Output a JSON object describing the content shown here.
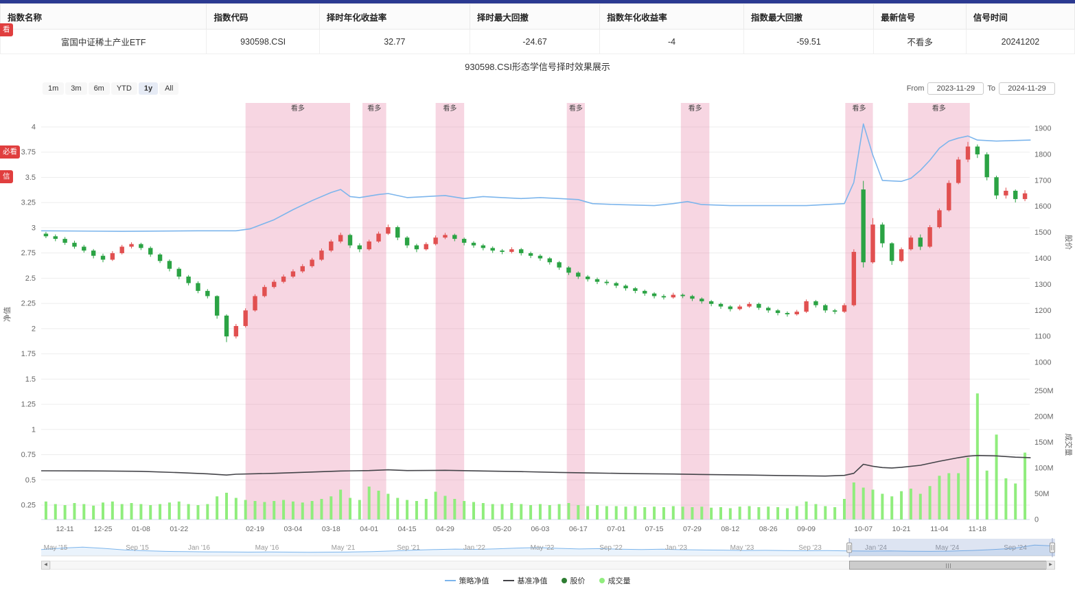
{
  "accent": {
    "top_bar_color": "#2b3a91"
  },
  "badges": [
    {
      "text": "看"
    },
    {
      "text": "必看"
    },
    {
      "text": "信"
    }
  ],
  "table": {
    "headers": [
      "指数名称",
      "指数代码",
      "择时年化收益率",
      "择时最大回撤",
      "指数年化收益率",
      "指数最大回撤",
      "最新信号",
      "信号时间"
    ],
    "row": [
      "富国中证稀土产业ETF",
      "930598.CSI",
      "32.77",
      "-24.67",
      "-4",
      "-59.51",
      "不看多",
      "20241202"
    ]
  },
  "chart": {
    "title": "930598.CSI形态学信号择时效果展示",
    "range_buttons": [
      "1m",
      "3m",
      "6m",
      "YTD",
      "1y",
      "All"
    ],
    "active_range": "1y",
    "from_label": "From",
    "to_label": "To",
    "from_value": "2023-11-29",
    "to_value": "2024-11-29"
  },
  "chart_data": {
    "type": "candlestick",
    "title": "930598.CSI形态学信号择时效果展示",
    "axes": {
      "left": {
        "title": "净值",
        "min": 0.25,
        "max": 4,
        "tick_step": 0.25
      },
      "price": {
        "title": "股价",
        "min": 1000,
        "max": 1900,
        "tick_step": 100
      },
      "volume": {
        "title": "成交量",
        "ticks": [
          "0",
          "50M",
          "100M",
          "150M",
          "200M",
          "250M"
        ]
      }
    },
    "x_ticks": [
      [
        "12-11",
        2
      ],
      [
        "12-25",
        6
      ],
      [
        "01-08",
        10
      ],
      [
        "01-22",
        14
      ],
      [
        "02-19",
        22
      ],
      [
        "03-04",
        26
      ],
      [
        "03-18",
        30
      ],
      [
        "04-01",
        34
      ],
      [
        "04-15",
        38
      ],
      [
        "04-29",
        42
      ],
      [
        "05-20",
        48
      ],
      [
        "06-03",
        52
      ],
      [
        "06-17",
        56
      ],
      [
        "07-01",
        60
      ],
      [
        "07-15",
        64
      ],
      [
        "07-29",
        68
      ],
      [
        "08-12",
        72
      ],
      [
        "08-26",
        76
      ],
      [
        "09-09",
        80
      ],
      [
        "10-07",
        86
      ],
      [
        "10-21",
        90
      ],
      [
        "11-04",
        94
      ],
      [
        "11-18",
        98
      ]
    ],
    "signal_bands": [
      {
        "label": "看多",
        "from": 21.5,
        "to": 32.5,
        "from_date": "2024-02-19",
        "to_date": "2024-03-22"
      },
      {
        "label": "看多",
        "from": 33.8,
        "to": 36.3,
        "from_date": "2024-04-01",
        "to_date": "2024-04-08"
      },
      {
        "label": "看多",
        "from": 41.5,
        "to": 44.5,
        "from_date": "2024-04-26",
        "to_date": "2024-05-06"
      },
      {
        "label": "看多",
        "from": 55.3,
        "to": 57.2,
        "from_date": "2024-06-14",
        "to_date": "2024-06-19"
      },
      {
        "label": "看多",
        "from": 67.3,
        "to": 70.3,
        "from_date": "2024-07-26",
        "to_date": "2024-08-06"
      },
      {
        "label": "看多",
        "from": 84.6,
        "to": 87.5,
        "from_date": "2024-09-30",
        "to_date": "2024-10-10"
      },
      {
        "label": "看多",
        "from": 91.2,
        "to": 97.7,
        "from_date": "2024-10-24",
        "to_date": "2024-11-13"
      }
    ],
    "candles": [
      [
        1495,
        1502,
        1478,
        1485
      ],
      [
        1485,
        1492,
        1466,
        1475
      ],
      [
        1475,
        1482,
        1452,
        1460
      ],
      [
        1460,
        1468,
        1437,
        1445
      ],
      [
        1445,
        1452,
        1422,
        1430
      ],
      [
        1430,
        1436,
        1400,
        1410
      ],
      [
        1410,
        1418,
        1385,
        1395
      ],
      [
        1395,
        1428,
        1390,
        1420
      ],
      [
        1420,
        1452,
        1415,
        1445
      ],
      [
        1445,
        1462,
        1438,
        1455
      ],
      [
        1455,
        1460,
        1432,
        1440
      ],
      [
        1440,
        1446,
        1406,
        1415
      ],
      [
        1415,
        1420,
        1382,
        1390
      ],
      [
        1390,
        1396,
        1350,
        1360
      ],
      [
        1360,
        1366,
        1320,
        1330
      ],
      [
        1330,
        1336,
        1296,
        1305
      ],
      [
        1305,
        1312,
        1266,
        1275
      ],
      [
        1275,
        1282,
        1246,
        1255
      ],
      [
        1255,
        1258,
        1168,
        1180
      ],
      [
        1180,
        1185,
        1078,
        1100
      ],
      [
        1100,
        1148,
        1092,
        1140
      ],
      [
        1140,
        1208,
        1134,
        1200
      ],
      [
        1200,
        1262,
        1195,
        1255
      ],
      [
        1255,
        1298,
        1250,
        1290
      ],
      [
        1290,
        1318,
        1284,
        1310
      ],
      [
        1310,
        1338,
        1304,
        1330
      ],
      [
        1330,
        1358,
        1324,
        1350
      ],
      [
        1350,
        1378,
        1344,
        1370
      ],
      [
        1370,
        1402,
        1364,
        1395
      ],
      [
        1395,
        1438,
        1390,
        1430
      ],
      [
        1430,
        1472,
        1424,
        1465
      ],
      [
        1465,
        1499,
        1458,
        1490
      ],
      [
        1490,
        1495,
        1440,
        1450
      ],
      [
        1450,
        1458,
        1424,
        1435
      ],
      [
        1435,
        1472,
        1430,
        1465
      ],
      [
        1465,
        1503,
        1460,
        1495
      ],
      [
        1495,
        1530,
        1490,
        1520
      ],
      [
        1520,
        1526,
        1470,
        1480
      ],
      [
        1480,
        1486,
        1440,
        1450
      ],
      [
        1450,
        1456,
        1424,
        1435
      ],
      [
        1435,
        1462,
        1430,
        1455
      ],
      [
        1455,
        1488,
        1450,
        1480
      ],
      [
        1480,
        1498,
        1474,
        1490
      ],
      [
        1490,
        1495,
        1466,
        1475
      ],
      [
        1475,
        1480,
        1450,
        1460
      ],
      [
        1460,
        1466,
        1441,
        1450
      ],
      [
        1450,
        1456,
        1431,
        1440
      ],
      [
        1440,
        1446,
        1421,
        1430
      ],
      [
        1430,
        1436,
        1416,
        1425
      ],
      [
        1425,
        1443,
        1419,
        1435
      ],
      [
        1435,
        1440,
        1411,
        1420
      ],
      [
        1420,
        1426,
        1401,
        1410
      ],
      [
        1410,
        1416,
        1391,
        1400
      ],
      [
        1400,
        1405,
        1376,
        1385
      ],
      [
        1385,
        1390,
        1356,
        1365
      ],
      [
        1365,
        1370,
        1336,
        1345
      ],
      [
        1345,
        1350,
        1321,
        1330
      ],
      [
        1330,
        1336,
        1311,
        1320
      ],
      [
        1320,
        1326,
        1301,
        1310
      ],
      [
        1310,
        1318,
        1297,
        1305
      ],
      [
        1305,
        1310,
        1286,
        1295
      ],
      [
        1295,
        1300,
        1276,
        1285
      ],
      [
        1285,
        1290,
        1266,
        1275
      ],
      [
        1275,
        1280,
        1256,
        1265
      ],
      [
        1265,
        1270,
        1246,
        1255
      ],
      [
        1255,
        1262,
        1242,
        1250
      ],
      [
        1250,
        1268,
        1245,
        1260
      ],
      [
        1260,
        1265,
        1247,
        1255
      ],
      [
        1255,
        1260,
        1236,
        1245
      ],
      [
        1245,
        1250,
        1226,
        1235
      ],
      [
        1235,
        1240,
        1216,
        1225
      ],
      [
        1225,
        1230,
        1206,
        1215
      ],
      [
        1215,
        1220,
        1196,
        1205
      ],
      [
        1205,
        1222,
        1200,
        1215
      ],
      [
        1215,
        1232,
        1210,
        1225
      ],
      [
        1225,
        1230,
        1202,
        1210
      ],
      [
        1210,
        1215,
        1191,
        1200
      ],
      [
        1200,
        1205,
        1181,
        1190
      ],
      [
        1190,
        1196,
        1176,
        1185
      ],
      [
        1185,
        1202,
        1180,
        1195
      ],
      [
        1195,
        1242,
        1190,
        1235
      ],
      [
        1235,
        1240,
        1211,
        1220
      ],
      [
        1220,
        1225,
        1191,
        1200
      ],
      [
        1200,
        1206,
        1186,
        1195
      ],
      [
        1195,
        1228,
        1190,
        1220
      ],
      [
        1220,
        1435,
        1215,
        1425
      ],
      [
        1665,
        1698,
        1365,
        1385
      ],
      [
        1385,
        1555,
        1380,
        1530
      ],
      [
        1530,
        1538,
        1442,
        1458
      ],
      [
        1458,
        1462,
        1375,
        1390
      ],
      [
        1390,
        1442,
        1385,
        1435
      ],
      [
        1435,
        1488,
        1430,
        1480
      ],
      [
        1480,
        1492,
        1432,
        1445
      ],
      [
        1445,
        1528,
        1440,
        1520
      ],
      [
        1520,
        1592,
        1515,
        1585
      ],
      [
        1585,
        1700,
        1580,
        1690
      ],
      [
        1690,
        1790,
        1685,
        1780
      ],
      [
        1780,
        1848,
        1770,
        1830
      ],
      [
        1830,
        1838,
        1786,
        1800
      ],
      [
        1800,
        1808,
        1700,
        1712
      ],
      [
        1712,
        1718,
        1628,
        1642
      ],
      [
        1642,
        1672,
        1630,
        1660
      ],
      [
        1660,
        1665,
        1615,
        1628
      ],
      [
        1628,
        1662,
        1620,
        1650
      ]
    ],
    "volumes": [
      35,
      30,
      28,
      32,
      30,
      27,
      33,
      35,
      30,
      32,
      30,
      28,
      30,
      33,
      35,
      30,
      28,
      30,
      45,
      52,
      42,
      38,
      36,
      34,
      36,
      38,
      35,
      33,
      36,
      40,
      45,
      58,
      42,
      38,
      64,
      56,
      50,
      42,
      38,
      36,
      40,
      54,
      46,
      40,
      36,
      34,
      32,
      30,
      30,
      32,
      30,
      28,
      30,
      28,
      30,
      32,
      28,
      26,
      28,
      26,
      26,
      25,
      26,
      24,
      25,
      24,
      26,
      25,
      24,
      25,
      23,
      24,
      22,
      25,
      26,
      24,
      25,
      24,
      22,
      26,
      35,
      30,
      26,
      24,
      40,
      72,
      62,
      58,
      50,
      45,
      55,
      60,
      50,
      65,
      85,
      90,
      90,
      120,
      245,
      95,
      165,
      80,
      70,
      130
    ],
    "strategy_nav": {
      "name": "策略净值",
      "color": "#7cb5ec",
      "points": [
        [
          -0.5,
          2.97
        ],
        [
          8,
          2.965
        ],
        [
          16,
          2.97
        ],
        [
          20,
          2.97
        ],
        [
          21.5,
          2.99
        ],
        [
          24,
          3.08
        ],
        [
          26,
          3.18
        ],
        [
          28,
          3.27
        ],
        [
          30,
          3.35
        ],
        [
          31,
          3.38
        ],
        [
          32,
          3.31
        ],
        [
          33,
          3.3
        ],
        [
          35,
          3.33
        ],
        [
          36,
          3.34
        ],
        [
          38,
          3.3
        ],
        [
          40,
          3.31
        ],
        [
          42,
          3.32
        ],
        [
          44,
          3.29
        ],
        [
          46,
          3.31
        ],
        [
          48,
          3.3
        ],
        [
          50,
          3.29
        ],
        [
          52,
          3.3
        ],
        [
          54,
          3.29
        ],
        [
          56,
          3.28
        ],
        [
          57.5,
          3.24
        ],
        [
          60,
          3.23
        ],
        [
          64,
          3.22
        ],
        [
          66,
          3.24
        ],
        [
          67.5,
          3.26
        ],
        [
          69,
          3.23
        ],
        [
          72,
          3.22
        ],
        [
          76,
          3.22
        ],
        [
          80,
          3.22
        ],
        [
          84,
          3.24
        ],
        [
          85,
          3.45
        ],
        [
          86,
          4.03
        ],
        [
          87,
          3.72
        ],
        [
          88,
          3.47
        ],
        [
          90,
          3.46
        ],
        [
          91,
          3.49
        ],
        [
          92,
          3.57
        ],
        [
          93,
          3.67
        ],
        [
          94,
          3.79
        ],
        [
          95,
          3.86
        ],
        [
          96,
          3.89
        ],
        [
          97,
          3.91
        ],
        [
          98,
          3.87
        ],
        [
          100,
          3.86
        ],
        [
          103.6,
          3.87
        ]
      ]
    },
    "benchmark_nav": {
      "name": "基准净值",
      "color": "#434348",
      "points": [
        [
          -0.5,
          0.59
        ],
        [
          6,
          0.588
        ],
        [
          10,
          0.585
        ],
        [
          14,
          0.572
        ],
        [
          17,
          0.56
        ],
        [
          19,
          0.548
        ],
        [
          20,
          0.556
        ],
        [
          24,
          0.565
        ],
        [
          28,
          0.578
        ],
        [
          31,
          0.588
        ],
        [
          34,
          0.592
        ],
        [
          36,
          0.6
        ],
        [
          38,
          0.592
        ],
        [
          42,
          0.595
        ],
        [
          46,
          0.588
        ],
        [
          50,
          0.582
        ],
        [
          54,
          0.574
        ],
        [
          58,
          0.568
        ],
        [
          62,
          0.562
        ],
        [
          66,
          0.558
        ],
        [
          70,
          0.552
        ],
        [
          74,
          0.548
        ],
        [
          78,
          0.542
        ],
        [
          82,
          0.538
        ],
        [
          84,
          0.545
        ],
        [
          85,
          0.565
        ],
        [
          86,
          0.655
        ],
        [
          87,
          0.635
        ],
        [
          88,
          0.622
        ],
        [
          89,
          0.618
        ],
        [
          90,
          0.625
        ],
        [
          92,
          0.645
        ],
        [
          94,
          0.685
        ],
        [
          96,
          0.72
        ],
        [
          97,
          0.735
        ],
        [
          98,
          0.742
        ],
        [
          100,
          0.738
        ],
        [
          102,
          0.725
        ],
        [
          103.6,
          0.72
        ]
      ]
    },
    "colors": {
      "up": "#e15050",
      "down": "#2ba344",
      "volume": "#90ed7d",
      "band": "rgba(230,120,160,0.30)"
    }
  },
  "navigator": {
    "labels": [
      {
        "text": "May '15",
        "f": 0.014
      },
      {
        "text": "Sep '15",
        "f": 0.095
      },
      {
        "text": "Jan '16",
        "f": 0.156
      },
      {
        "text": "May '16",
        "f": 0.223
      },
      {
        "text": "May '21",
        "f": 0.298
      },
      {
        "text": "Sep '21",
        "f": 0.362
      },
      {
        "text": "Jan '22",
        "f": 0.427
      },
      {
        "text": "May '22",
        "f": 0.494
      },
      {
        "text": "Sep '22",
        "f": 0.562
      },
      {
        "text": "Jan '23",
        "f": 0.626
      },
      {
        "text": "May '23",
        "f": 0.691
      },
      {
        "text": "Sep '23",
        "f": 0.758
      },
      {
        "text": "Jan '24",
        "f": 0.823
      },
      {
        "text": "May '24",
        "f": 0.894
      },
      {
        "text": "Sep '24",
        "f": 0.961
      }
    ],
    "values": [
      0.42,
      0.52,
      0.58,
      0.5,
      0.4,
      0.34,
      0.3,
      0.28,
      0.27,
      0.26,
      0.25,
      0.26,
      0.25,
      0.24,
      0.25,
      0.26,
      0.28,
      0.33,
      0.38,
      0.42,
      0.45,
      0.43,
      0.47,
      0.52,
      0.55,
      0.5,
      0.46,
      0.48,
      0.44,
      0.42,
      0.44,
      0.41,
      0.39,
      0.38,
      0.36,
      0.37,
      0.35,
      0.34,
      0.35,
      0.33,
      0.32,
      0.33,
      0.31,
      0.3,
      0.32,
      0.36,
      0.42,
      0.5,
      0.72,
      0.66
    ],
    "selected_from": 0.797,
    "selected_to": 1.0
  },
  "legend": [
    {
      "id": "strategy",
      "label": "策略净值",
      "type": "line",
      "color": "#7cb5ec"
    },
    {
      "id": "benchmark",
      "label": "基准净值",
      "type": "line",
      "color": "#434348"
    },
    {
      "id": "price",
      "label": "股价",
      "type": "dot",
      "color": "#2e7d32"
    },
    {
      "id": "volume",
      "label": "成交量",
      "type": "dot",
      "color": "#90ed7d"
    }
  ]
}
